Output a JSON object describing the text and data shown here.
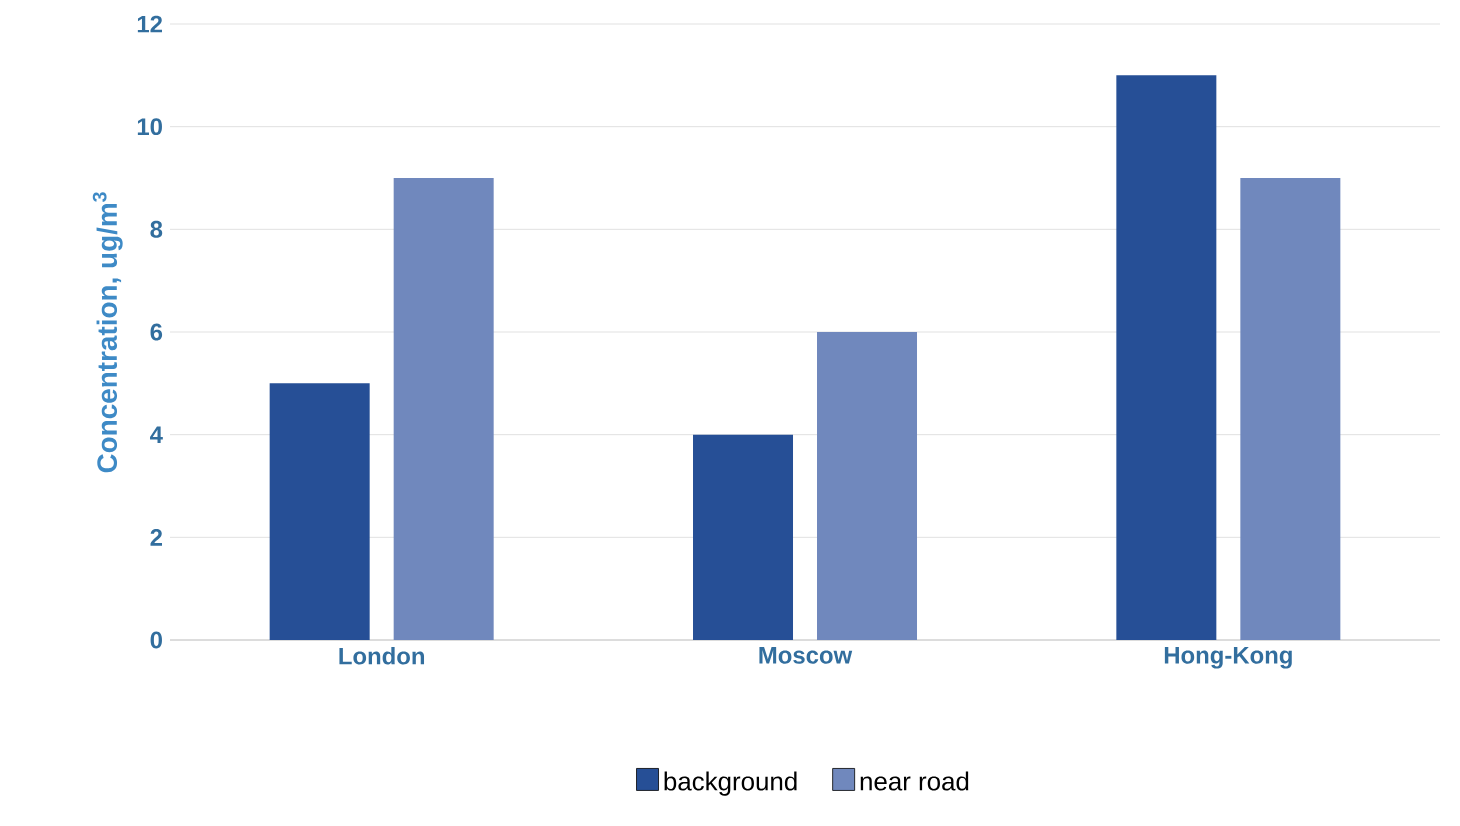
{
  "chart_data": {
    "type": "bar",
    "ylabel": "Concentration, ug/m$^{3}$",
    "categories": [
      "London",
      "Moscow",
      "Hong-Kong"
    ],
    "series": [
      {
        "name": "background",
        "color": "#264f96",
        "values": [
          5,
          4,
          11
        ]
      },
      {
        "name": "near road",
        "color": "#7088bd",
        "values": [
          9,
          6,
          9
        ]
      }
    ],
    "ylim": [
      0,
      12
    ],
    "yticks": [
      0,
      2,
      4,
      6,
      8,
      10,
      12
    ],
    "grid": "y",
    "legend": "bottom"
  }
}
